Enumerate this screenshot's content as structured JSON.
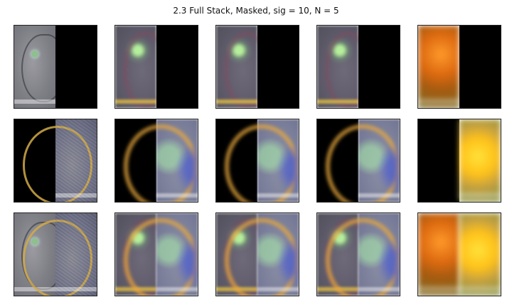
{
  "figure": {
    "title": "2.3 Full Stack, Masked, sig = 10, N = 5"
  },
  "grid": {
    "rows": 3,
    "cols": 5,
    "panels": [
      {
        "row": 1,
        "col": 1,
        "left": "apple-hf",
        "right": "black"
      },
      {
        "row": 1,
        "col": 2,
        "left": "apple-blur",
        "right": "black"
      },
      {
        "row": 1,
        "col": 3,
        "left": "apple-blur",
        "right": "black"
      },
      {
        "row": 1,
        "col": 4,
        "left": "apple-blur",
        "right": "black"
      },
      {
        "row": 1,
        "col": 5,
        "left": "apple-lf",
        "right": "black"
      },
      {
        "row": 2,
        "col": 1,
        "left": "black",
        "right": "orange-hf"
      },
      {
        "row": 2,
        "col": 2,
        "left": "black",
        "right": "orange-blur"
      },
      {
        "row": 2,
        "col": 3,
        "left": "black",
        "right": "orange-blur"
      },
      {
        "row": 2,
        "col": 4,
        "left": "black",
        "right": "orange-blur"
      },
      {
        "row": 2,
        "col": 5,
        "left": "black",
        "right": "orange-lf"
      },
      {
        "row": 3,
        "col": 1,
        "left": "apple-hf",
        "right": "orange-hf"
      },
      {
        "row": 3,
        "col": 2,
        "left": "apple-blur",
        "right": "orange-blur"
      },
      {
        "row": 3,
        "col": 3,
        "left": "apple-blur",
        "right": "orange-blur"
      },
      {
        "row": 3,
        "col": 4,
        "left": "apple-blur",
        "right": "orange-blur"
      },
      {
        "row": 3,
        "col": 5,
        "left": "apple-lf",
        "right": "orange-lf"
      }
    ]
  }
}
